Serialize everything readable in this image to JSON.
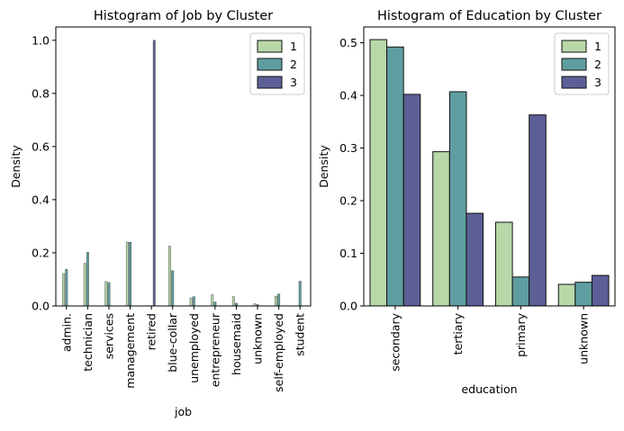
{
  "chart_data": [
    {
      "type": "bar",
      "title": "Histogram of Job by Cluster",
      "xlabel": "job",
      "ylabel": "Density",
      "ylim": [
        0,
        1.05
      ],
      "yticks": [
        0.0,
        0.2,
        0.4,
        0.6,
        0.8,
        1.0
      ],
      "ytick_labels": [
        "0.0",
        "0.2",
        "0.4",
        "0.6",
        "0.8",
        "1.0"
      ],
      "legend_position": "top-right",
      "grid": false,
      "categories": [
        "admin.",
        "technician",
        "services",
        "management",
        "retired",
        "blue-collar",
        "unemployed",
        "entrepreneur",
        "housemaid",
        "unknown",
        "self-employed",
        "student"
      ],
      "series": [
        {
          "name": "1",
          "color": "#b8d8a8",
          "values": [
            0.122,
            0.16,
            0.092,
            0.24,
            0.0,
            0.225,
            0.03,
            0.042,
            0.035,
            0.008,
            0.037,
            0.0
          ]
        },
        {
          "name": "2",
          "color": "#5f9ea0",
          "values": [
            0.138,
            0.202,
            0.088,
            0.24,
            0.0,
            0.133,
            0.035,
            0.015,
            0.01,
            0.005,
            0.045,
            0.093
          ]
        },
        {
          "name": "3",
          "color": "#5c5f96",
          "values": [
            0.0,
            0.0,
            0.0,
            0.0,
            1.0,
            0.0,
            0.0,
            0.0,
            0.0,
            0.0,
            0.0,
            0.0
          ]
        }
      ]
    },
    {
      "type": "bar",
      "title": "Histogram of Education by Cluster",
      "xlabel": "education",
      "ylabel": "Density",
      "ylim": [
        0,
        0.53
      ],
      "yticks": [
        0.0,
        0.1,
        0.2,
        0.3,
        0.4,
        0.5
      ],
      "ytick_labels": [
        "0.0",
        "0.1",
        "0.2",
        "0.3",
        "0.4",
        "0.5"
      ],
      "legend_position": "top-right",
      "grid": false,
      "categories": [
        "secondary",
        "tertiary",
        "primary",
        "unknown"
      ],
      "series": [
        {
          "name": "1",
          "color": "#b8d8a8",
          "values": [
            0.506,
            0.293,
            0.159,
            0.041
          ]
        },
        {
          "name": "2",
          "color": "#5f9ea0",
          "values": [
            0.492,
            0.407,
            0.055,
            0.045
          ]
        },
        {
          "name": "3",
          "color": "#5c5f96",
          "values": [
            0.402,
            0.176,
            0.363,
            0.058
          ]
        }
      ]
    }
  ]
}
